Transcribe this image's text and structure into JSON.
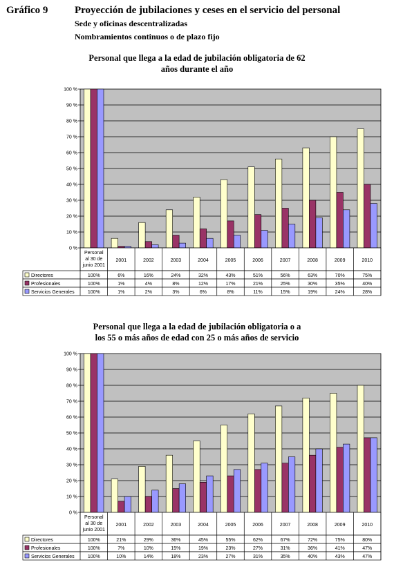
{
  "header": {
    "figure_label": "Gráfico 9",
    "title": "Proyección de jubilaciones y ceses en el servicio del personal",
    "subtitle1": "Sede y oficinas descentralizadas",
    "subtitle2": "Nombramientos continuos o de plazo fijo"
  },
  "colors": {
    "plot_bg": "#C0C0C0",
    "series": [
      "#FFFFCC",
      "#993366",
      "#9999FF"
    ]
  },
  "chart_data": [
    {
      "type": "bar",
      "title_line1": "Personal que llega a la edad de jubilación obligatoria de 62",
      "title_line2": "años durante el año",
      "categories": [
        "Personal al 30 de junio 2001",
        "2001",
        "2002",
        "2003",
        "2004",
        "2005",
        "2006",
        "2007",
        "2008",
        "2009",
        "2010"
      ],
      "y_ticks": [
        "0 %",
        "10 %",
        "20 %",
        "30 %",
        "40 %",
        "50 %",
        "60 %",
        "70 %",
        "80 %",
        "90 %",
        "100 %"
      ],
      "ylim": [
        0,
        100
      ],
      "grid": true,
      "legend": "data table",
      "series": [
        {
          "name": "Directores",
          "values": [
            100,
            6,
            16,
            24,
            32,
            43,
            51,
            56,
            63,
            70,
            75
          ],
          "labels": [
            "100%",
            "6%",
            "16%",
            "24%",
            "32%",
            "43%",
            "51%",
            "56%",
            "63%",
            "70%",
            "75%"
          ]
        },
        {
          "name": "Profesionales",
          "values": [
            100,
            1,
            4,
            8,
            12,
            17,
            21,
            25,
            30,
            35,
            40
          ],
          "labels": [
            "100%",
            "1%",
            "4%",
            "8%",
            "12%",
            "17%",
            "21%",
            "25%",
            "30%",
            "35%",
            "40%"
          ]
        },
        {
          "name": "Servicios Generales",
          "values": [
            100,
            1,
            2,
            3,
            6,
            8,
            11,
            15,
            19,
            24,
            28
          ],
          "labels": [
            "100%",
            "1%",
            "2%",
            "3%",
            "6%",
            "8%",
            "11%",
            "15%",
            "19%",
            "24%",
            "28%"
          ]
        }
      ]
    },
    {
      "type": "bar",
      "title_line1": "Personal que llega a la edad de jubilación obligatoria o a",
      "title_line2": "los 55 o más años de edad con 25 o más años de servicio",
      "categories": [
        "Personal al 30 de junio 2001",
        "2001",
        "2002",
        "2003",
        "2004",
        "2005",
        "2006",
        "2007",
        "2008",
        "2009",
        "2010"
      ],
      "y_ticks": [
        "0 %",
        "10 %",
        "20 %",
        "30 %",
        "40 %",
        "50 %",
        "60 %",
        "70 %",
        "80 %",
        "90 %",
        "100 %"
      ],
      "ylim": [
        0,
        100
      ],
      "grid": true,
      "legend": "data table",
      "series": [
        {
          "name": "Directores",
          "values": [
            100,
            21,
            29,
            36,
            45,
            55,
            62,
            67,
            72,
            75,
            80
          ],
          "labels": [
            "100%",
            "21%",
            "29%",
            "36%",
            "45%",
            "55%",
            "62%",
            "67%",
            "72%",
            "75%",
            "80%"
          ]
        },
        {
          "name": "Profesionales",
          "values": [
            100,
            7,
            10,
            15,
            19,
            23,
            27,
            31,
            36,
            41,
            47
          ],
          "labels": [
            "100%",
            "7%",
            "10%",
            "15%",
            "19%",
            "23%",
            "27%",
            "31%",
            "36%",
            "41%",
            "47%"
          ]
        },
        {
          "name": "Servicios Generales",
          "values": [
            100,
            10,
            14,
            18,
            23,
            27,
            31,
            35,
            40,
            43,
            47
          ],
          "labels": [
            "100%",
            "10%",
            "14%",
            "18%",
            "23%",
            "27%",
            "31%",
            "35%",
            "40%",
            "43%",
            "47%"
          ]
        }
      ]
    }
  ]
}
